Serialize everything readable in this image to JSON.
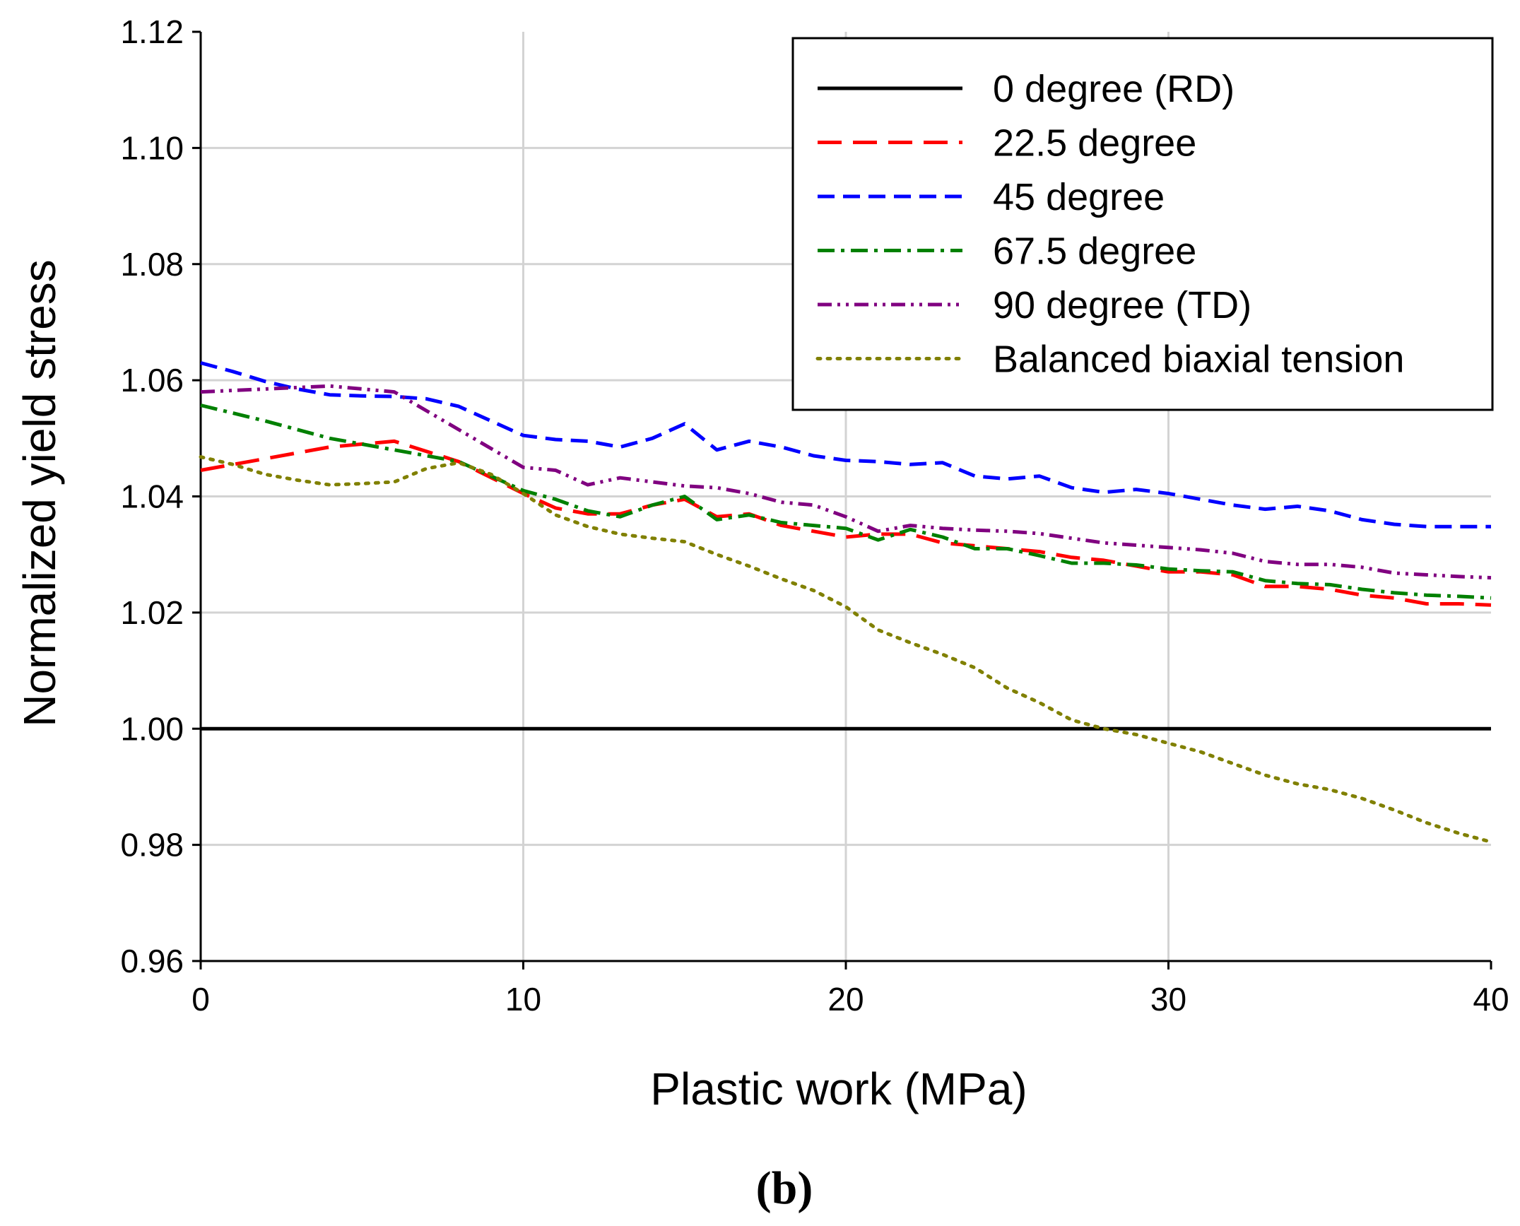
{
  "chart_data": {
    "type": "line",
    "title": "",
    "xlabel": "Plastic work (MPa)",
    "ylabel": "Normalized yield stress",
    "panel_label": "(b)",
    "xlim": [
      0,
      40
    ],
    "ylim": [
      0.96,
      1.12
    ],
    "xticks": [
      "0",
      "10",
      "20",
      "30",
      "40"
    ],
    "xtick_values": [
      0,
      10,
      20,
      30,
      40
    ],
    "yticks": [
      "0.96",
      "0.98",
      "1.00",
      "1.02",
      "1.04",
      "1.06",
      "1.08",
      "1.10",
      "1.12"
    ],
    "ytick_values": [
      0.96,
      0.98,
      1.0,
      1.02,
      1.04,
      1.06,
      1.08,
      1.1,
      1.12
    ],
    "grid": true,
    "legend_position": "top-right",
    "series": [
      {
        "name": "0 degree (RD)",
        "color": "#000000",
        "style": "solid",
        "x": [
          0,
          40
        ],
        "y": [
          1.0,
          1.0
        ]
      },
      {
        "name": "22.5 degree",
        "color": "#ff0000",
        "style": "long-dash",
        "x": [
          0,
          2,
          4,
          6,
          8,
          10,
          11,
          12,
          13,
          14,
          15,
          16,
          17,
          18,
          19,
          20,
          21,
          22,
          23,
          24,
          25,
          26,
          27,
          28,
          29,
          30,
          31,
          32,
          33,
          34,
          35,
          36,
          37,
          38,
          39,
          40
        ],
        "y": [
          1.0445,
          1.0465,
          1.0485,
          1.0495,
          1.046,
          1.0405,
          1.038,
          1.037,
          1.037,
          1.0385,
          1.0395,
          1.0365,
          1.037,
          1.035,
          1.034,
          1.033,
          1.0335,
          1.0335,
          1.032,
          1.0315,
          1.031,
          1.0305,
          1.0295,
          1.029,
          1.028,
          1.027,
          1.027,
          1.0265,
          1.0245,
          1.0245,
          1.024,
          1.023,
          1.0225,
          1.0215,
          1.0215,
          1.0213
        ]
      },
      {
        "name": "45 degree",
        "color": "#0000ff",
        "style": "dash",
        "x": [
          0,
          1,
          2,
          3,
          4,
          5,
          6,
          7,
          8,
          9,
          10,
          11,
          12,
          13,
          14,
          15,
          16,
          17,
          18,
          19,
          20,
          21,
          22,
          23,
          24,
          25,
          26,
          27,
          28,
          29,
          30,
          31,
          32,
          33,
          34,
          35,
          36,
          37,
          38,
          39,
          40
        ],
        "y": [
          1.063,
          1.0615,
          1.0598,
          1.0585,
          1.0575,
          1.0573,
          1.0572,
          1.0568,
          1.0555,
          1.053,
          1.0505,
          1.0498,
          1.0495,
          1.0485,
          1.05,
          1.0525,
          1.048,
          1.0495,
          1.0485,
          1.047,
          1.0462,
          1.046,
          1.0455,
          1.0458,
          1.0435,
          1.043,
          1.0435,
          1.0415,
          1.0407,
          1.0412,
          1.0405,
          1.0395,
          1.0385,
          1.0378,
          1.0383,
          1.0375,
          1.036,
          1.0352,
          1.0348,
          1.0348,
          1.0348
        ]
      },
      {
        "name": "67.5 degree",
        "color": "#008000",
        "style": "dash-dot",
        "x": [
          0,
          2,
          4,
          6,
          8,
          10,
          11,
          12,
          13,
          14,
          15,
          16,
          17,
          18,
          19,
          20,
          21,
          22,
          23,
          24,
          25,
          26,
          27,
          28,
          29,
          30,
          31,
          32,
          33,
          34,
          35,
          36,
          37,
          38,
          39,
          40
        ],
        "y": [
          1.0557,
          1.053,
          1.05,
          1.048,
          1.046,
          1.041,
          1.0395,
          1.0375,
          1.0365,
          1.0385,
          1.04,
          1.036,
          1.0368,
          1.0355,
          1.035,
          1.0345,
          1.0325,
          1.0343,
          1.033,
          1.031,
          1.031,
          1.0298,
          1.0285,
          1.0285,
          1.0282,
          1.0275,
          1.0272,
          1.027,
          1.0255,
          1.025,
          1.0248,
          1.024,
          1.0234,
          1.023,
          1.0228,
          1.0225
        ]
      },
      {
        "name": "90 degree (TD)",
        "color": "#800080",
        "style": "dash-dot-dot",
        "x": [
          0,
          2,
          4,
          6,
          8,
          10,
          11,
          12,
          13,
          14,
          15,
          16,
          17,
          18,
          19,
          20,
          21,
          22,
          23,
          24,
          25,
          26,
          27,
          28,
          29,
          30,
          31,
          32,
          33,
          34,
          35,
          36,
          37,
          38,
          39,
          40
        ],
        "y": [
          1.058,
          1.0585,
          1.059,
          1.058,
          1.0515,
          1.045,
          1.0445,
          1.042,
          1.0432,
          1.0425,
          1.0418,
          1.0415,
          1.0405,
          1.039,
          1.0385,
          1.0365,
          1.034,
          1.035,
          1.0345,
          1.0342,
          1.034,
          1.0336,
          1.0328,
          1.032,
          1.0316,
          1.0312,
          1.0308,
          1.0302,
          1.0288,
          1.0283,
          1.0283,
          1.0278,
          1.0268,
          1.0265,
          1.0262,
          1.026
        ]
      },
      {
        "name": "Balanced biaxial tension",
        "color": "#808000",
        "style": "dot",
        "x": [
          0,
          1,
          2,
          3,
          4,
          5,
          6,
          7,
          8,
          9,
          10,
          11,
          12,
          13,
          14,
          15,
          16,
          17,
          18,
          19,
          20,
          21,
          22,
          23,
          24,
          25,
          26,
          27,
          28,
          29,
          30,
          31,
          32,
          33,
          34,
          35,
          36,
          37,
          38,
          39,
          40
        ],
        "y": [
          1.0468,
          1.0455,
          1.0438,
          1.0428,
          1.042,
          1.0422,
          1.0425,
          1.0448,
          1.0458,
          1.0438,
          1.0405,
          1.0368,
          1.0348,
          1.0335,
          1.0328,
          1.0322,
          1.03,
          1.028,
          1.0258,
          1.0238,
          1.021,
          1.017,
          1.0148,
          1.0128,
          1.0105,
          1.007,
          1.0045,
          1.0015,
          1.0,
          0.999,
          0.9975,
          0.996,
          0.994,
          0.992,
          0.9905,
          0.9895,
          0.988,
          0.986,
          0.9838,
          0.982,
          0.9805
        ]
      }
    ]
  }
}
